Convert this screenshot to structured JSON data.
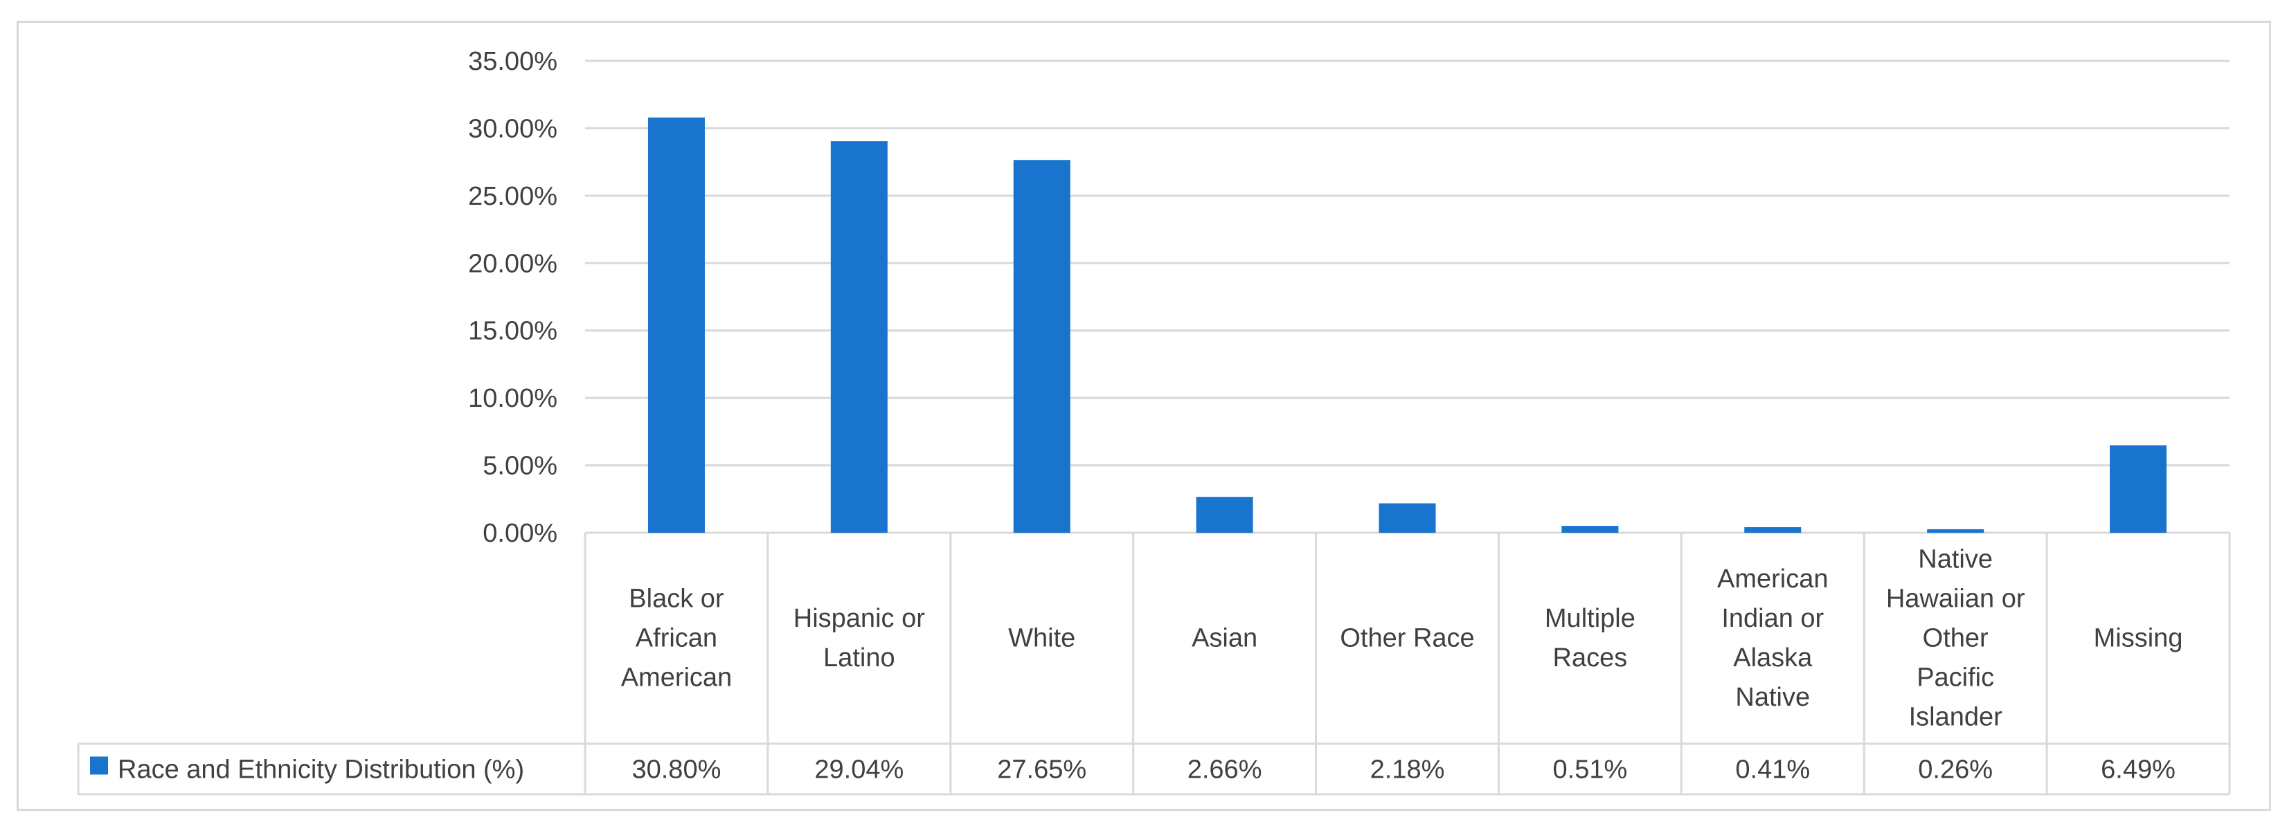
{
  "chart_data": {
    "type": "bar",
    "title": "",
    "xlabel": "",
    "ylabel": "",
    "categories": [
      [
        "Black or",
        "African",
        "American"
      ],
      [
        "Hispanic or",
        "Latino"
      ],
      [
        "White"
      ],
      [
        "Asian"
      ],
      [
        "Other Race"
      ],
      [
        "Multiple",
        "Races"
      ],
      [
        "American",
        "Indian or",
        "Alaska",
        "Native"
      ],
      [
        "Native",
        "Hawaiian or",
        "Other",
        "Pacific",
        "Islander"
      ],
      [
        "Missing"
      ]
    ],
    "series": [
      {
        "name": "Race and Ethnicity Distribution (%)",
        "values": [
          30.8,
          29.04,
          27.65,
          2.66,
          2.18,
          0.51,
          0.41,
          0.26,
          6.49
        ],
        "value_labels": [
          "30.80%",
          "29.04%",
          "27.65%",
          "2.66%",
          "2.18%",
          "0.51%",
          "0.41%",
          "0.26%",
          "6.49%"
        ],
        "color": "#1874cd"
      }
    ],
    "ylim": [
      0,
      35
    ],
    "yticks": [
      0,
      5,
      10,
      15,
      20,
      25,
      30,
      35
    ],
    "ytick_labels": [
      "0.00%",
      "5.00%",
      "10.00%",
      "15.00%",
      "20.00%",
      "25.00%",
      "30.00%",
      "35.00%"
    ],
    "grid": true,
    "legend": "data-table-left",
    "data_table": true,
    "gridline_color": "#d9d9d9",
    "text_color": "#404040"
  }
}
